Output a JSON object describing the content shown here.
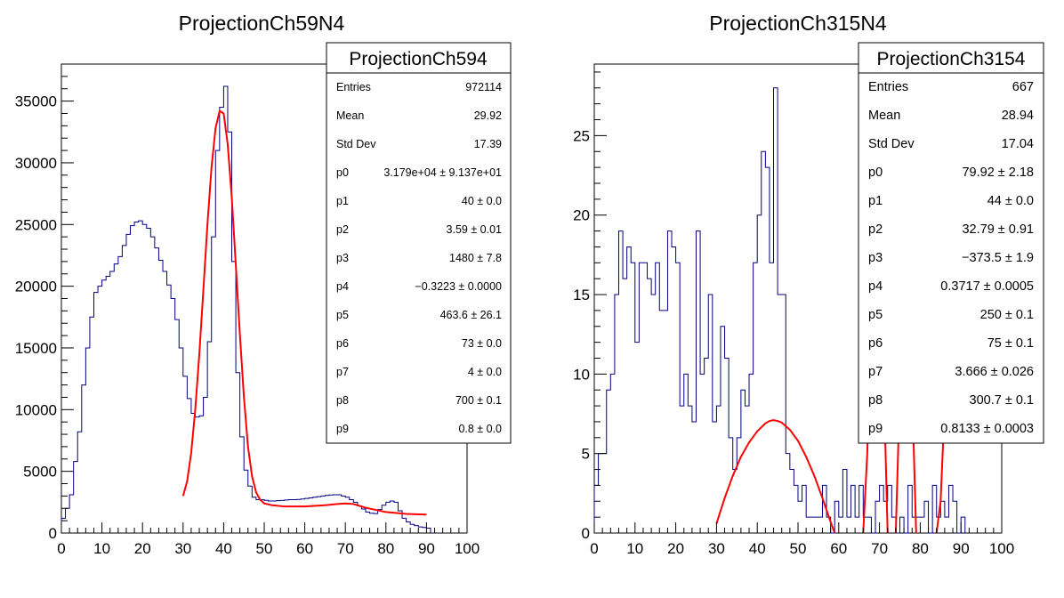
{
  "chart_data": [
    {
      "type": "histogram",
      "title": "ProjectionCh59N4",
      "xlim": [
        0,
        100
      ],
      "ylim": [
        0,
        38000
      ],
      "x_ticks": [
        0,
        10,
        20,
        30,
        40,
        50,
        60,
        70,
        80,
        90,
        100
      ],
      "y_ticks": [
        0,
        5000,
        10000,
        15000,
        20000,
        25000,
        30000,
        35000
      ],
      "histogram": {
        "bin_width": 1,
        "x_start": 0,
        "color": "#000080",
        "values": [
          1200,
          2000,
          3100,
          5800,
          8200,
          12000,
          15000,
          17500,
          19500,
          20000,
          20500,
          20800,
          21200,
          21800,
          22400,
          23300,
          24200,
          24900,
          25200,
          25300,
          25000,
          24700,
          24000,
          23100,
          22100,
          21200,
          20100,
          19000,
          17300,
          15000,
          12700,
          10900,
          9700,
          9400,
          9500,
          11000,
          15500,
          24000,
          31000,
          34500,
          36200,
          32500,
          22000,
          13000,
          7800,
          5100,
          3800,
          2900,
          2700,
          2700,
          2650,
          2600,
          2600,
          2620,
          2640,
          2680,
          2700,
          2700,
          2720,
          2760,
          2800,
          2850,
          2900,
          2950,
          3000,
          3050,
          3080,
          3100,
          3100,
          3000,
          2900,
          2700,
          2500,
          2200,
          1950,
          1700,
          1600,
          1580,
          1900,
          2250,
          2500,
          2600,
          2500,
          1800,
          1200,
          900,
          700,
          600,
          500,
          450,
          400
        ]
      },
      "fit": {
        "color": "#ff0000",
        "x": [
          30,
          31,
          32,
          33,
          34,
          35,
          36,
          37,
          38,
          39,
          40,
          41,
          42,
          43,
          44,
          45,
          46,
          47,
          48,
          49,
          50,
          52,
          55,
          60,
          65,
          68,
          70,
          72,
          75,
          80,
          85,
          90
        ],
        "y": [
          3000,
          4200,
          6500,
          10000,
          14500,
          19700,
          25000,
          29600,
          32800,
          34200,
          34000,
          31500,
          27200,
          21700,
          16100,
          11000,
          7000,
          4600,
          3300,
          2700,
          2400,
          2250,
          2150,
          2150,
          2250,
          2350,
          2400,
          2350,
          2050,
          1700,
          1550,
          1500
        ]
      },
      "stats": {
        "title": "ProjectionCh594",
        "rows": [
          {
            "label": "Entries",
            "value": "972114"
          },
          {
            "label": "Mean",
            "value": "29.92"
          },
          {
            "label": "Std Dev",
            "value": "17.39"
          },
          {
            "label": "p0",
            "value": "3.179e+04 ± 9.137e+01"
          },
          {
            "label": "p1",
            "value": "40 ± 0.0"
          },
          {
            "label": "p2",
            "value": "3.59 ± 0.01"
          },
          {
            "label": "p3",
            "value": "1480 ± 7.8"
          },
          {
            "label": "p4",
            "value": "−0.3223 ± 0.0000"
          },
          {
            "label": "p5",
            "value": "463.6 ± 26.1"
          },
          {
            "label": "p6",
            "value": "73 ± 0.0"
          },
          {
            "label": "p7",
            "value": "4 ± 0.0"
          },
          {
            "label": "p8",
            "value": "700 ± 0.1"
          },
          {
            "label": "p9",
            "value": "0.8 ± 0.0"
          }
        ]
      }
    },
    {
      "type": "histogram",
      "title": "ProjectionCh315N4",
      "xlim": [
        0,
        100
      ],
      "ylim": [
        0,
        29.5
      ],
      "x_ticks": [
        0,
        10,
        20,
        30,
        40,
        50,
        60,
        70,
        80,
        90,
        100
      ],
      "y_ticks": [
        0,
        5,
        10,
        15,
        20,
        25
      ],
      "histogram": {
        "bin_width": 1,
        "x_start": 0,
        "color": "#000080",
        "values": [
          3,
          5,
          5,
          9,
          10,
          15,
          19,
          16,
          18,
          17,
          12,
          17,
          17,
          16,
          15,
          17,
          14,
          14,
          19,
          18,
          17,
          8,
          10,
          8,
          7,
          19,
          10,
          11,
          15,
          7,
          8,
          13,
          11,
          6,
          4,
          6,
          9,
          8,
          10,
          17,
          20,
          24,
          23,
          17,
          28,
          15,
          15,
          5,
          4,
          3,
          2,
          3,
          1,
          1,
          1,
          1,
          3,
          1,
          0,
          2,
          1,
          4,
          1,
          3,
          1,
          3,
          1,
          1,
          0,
          2,
          3,
          2,
          3,
          1,
          0,
          1,
          0,
          3,
          1,
          1,
          1,
          2,
          0,
          3,
          1,
          2,
          1,
          3,
          2,
          0,
          1
        ]
      },
      "fit_segments": [
        {
          "color": "#ff0000",
          "x": [
            30,
            32,
            34,
            36,
            38,
            40,
            42,
            43,
            44,
            45,
            46,
            48,
            50,
            52,
            54,
            56,
            58,
            59
          ],
          "y": [
            0.6,
            2.2,
            3.6,
            4.8,
            5.7,
            6.4,
            6.9,
            7.05,
            7.1,
            7.05,
            6.95,
            6.5,
            5.8,
            4.8,
            3.6,
            2.2,
            0.7,
            0
          ]
        },
        {
          "color": "#ff0000",
          "x": [
            66,
            67,
            68,
            69,
            70,
            71,
            72
          ],
          "y": [
            0,
            5,
            15,
            22,
            20,
            10,
            0
          ]
        },
        {
          "color": "#ff0000",
          "x": [
            74,
            75,
            76,
            77,
            78,
            79
          ],
          "y": [
            0,
            9,
            17.5,
            17.5,
            9,
            0
          ]
        },
        {
          "color": "#ff0000",
          "x": [
            84,
            85,
            86,
            87,
            88,
            89,
            90
          ],
          "y": [
            0,
            2,
            8,
            14,
            19,
            22,
            23.7
          ]
        }
      ],
      "stats": {
        "title": "ProjectionCh3154",
        "rows": [
          {
            "label": "Entries",
            "value": "667"
          },
          {
            "label": "Mean",
            "value": "28.94"
          },
          {
            "label": "Std Dev",
            "value": "17.04"
          },
          {
            "label": "p0",
            "value": "79.92 ± 2.18"
          },
          {
            "label": "p1",
            "value": "44 ± 0.0"
          },
          {
            "label": "p2",
            "value": "32.79 ± 0.91"
          },
          {
            "label": "p3",
            "value": "−373.5 ± 1.9"
          },
          {
            "label": "p4",
            "value": "0.3717 ± 0.0005"
          },
          {
            "label": "p5",
            "value": "250 ± 0.1"
          },
          {
            "label": "p6",
            "value": "75 ± 0.1"
          },
          {
            "label": "p7",
            "value": "3.666 ± 0.026"
          },
          {
            "label": "p8",
            "value": "300.7 ± 0.1"
          },
          {
            "label": "p9",
            "value": "0.8133 ± 0.0003"
          }
        ]
      }
    }
  ]
}
